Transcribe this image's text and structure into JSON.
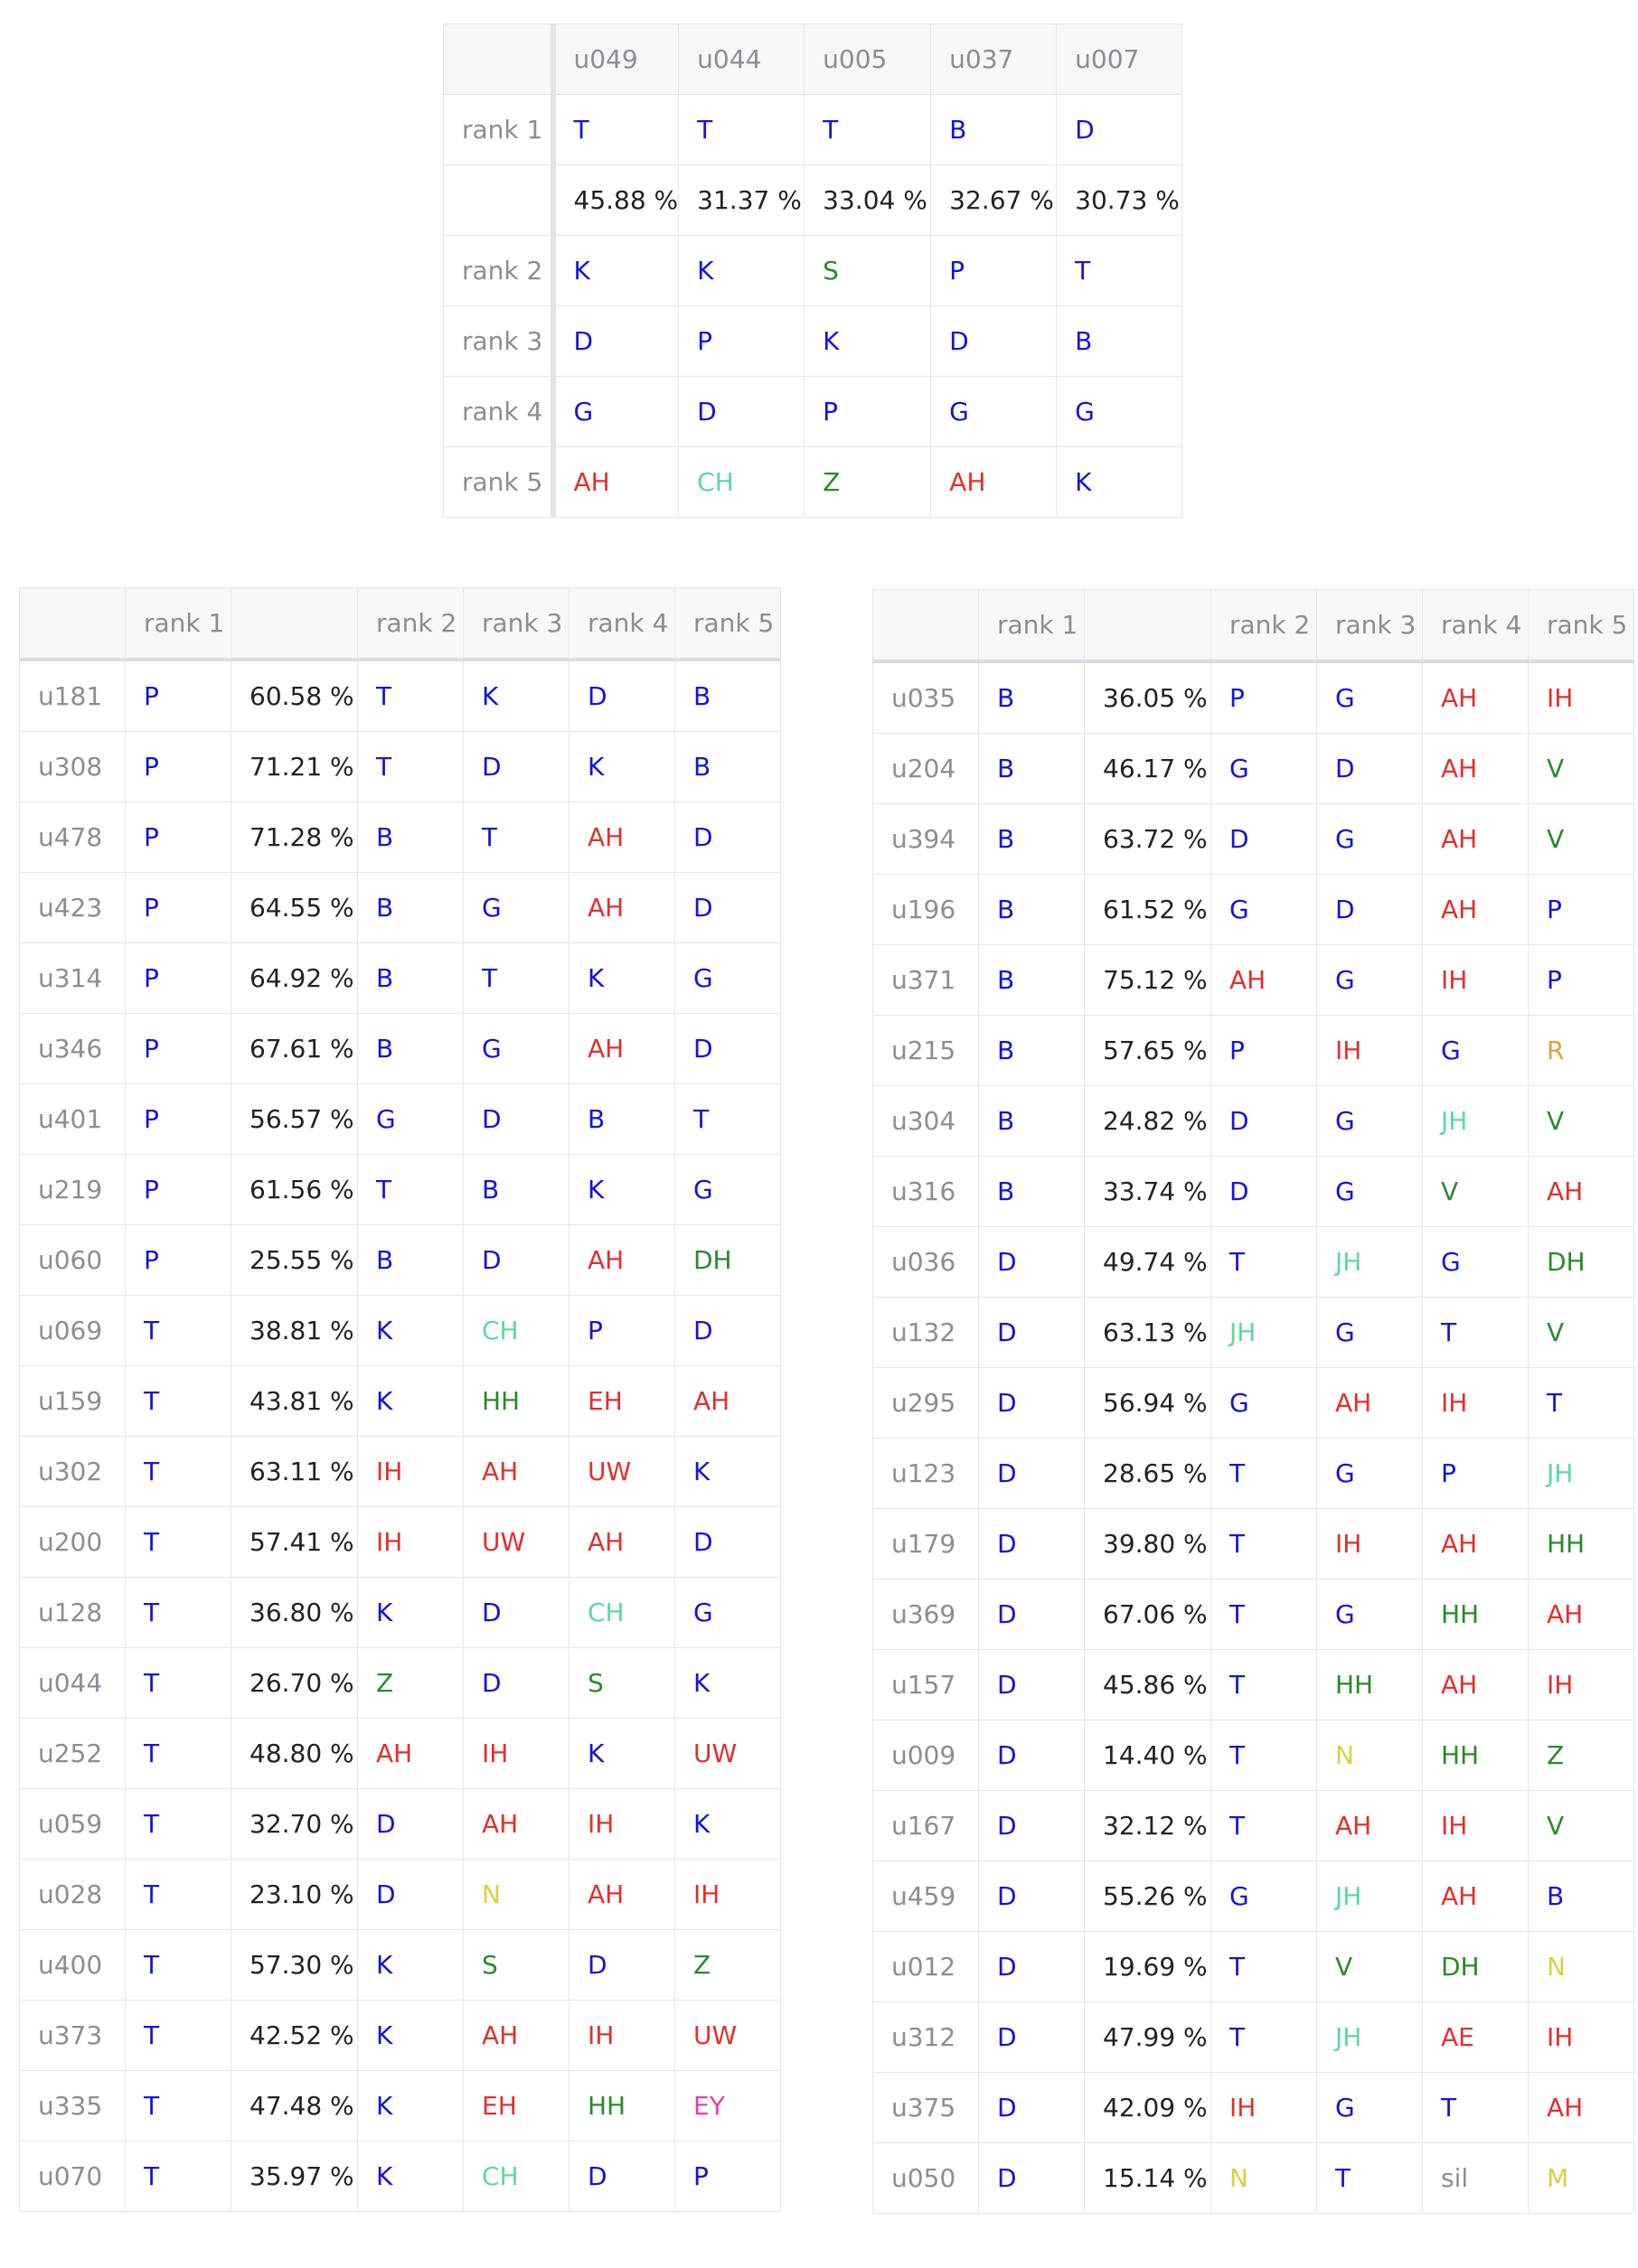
{
  "top_table": {
    "columns": [
      "u049",
      "u044",
      "u005",
      "u037",
      "u007"
    ],
    "rows": [
      {
        "label": "rank 1",
        "type": "phone",
        "values": [
          "T",
          "T",
          "T",
          "B",
          "D"
        ]
      },
      {
        "label": "",
        "type": "pct",
        "values": [
          "45.88 %",
          "31.37 %",
          "33.04 %",
          "32.67 %",
          "30.73 %"
        ]
      },
      {
        "label": "rank 2",
        "type": "phone",
        "values": [
          "K",
          "K",
          "S",
          "P",
          "T"
        ]
      },
      {
        "label": "rank 3",
        "type": "phone",
        "values": [
          "D",
          "P",
          "K",
          "D",
          "B"
        ]
      },
      {
        "label": "rank 4",
        "type": "phone",
        "values": [
          "G",
          "D",
          "P",
          "G",
          "G"
        ]
      },
      {
        "label": "rank 5",
        "type": "phone",
        "values": [
          "AH",
          "CH",
          "Z",
          "AH",
          "K"
        ]
      }
    ]
  },
  "left_table": {
    "headers": [
      "",
      "rank 1",
      "",
      "rank 2",
      "rank 3",
      "rank 4",
      "rank 5"
    ],
    "rows": [
      [
        "u181",
        "P",
        "60.58 %",
        "T",
        "K",
        "D",
        "B"
      ],
      [
        "u308",
        "P",
        "71.21 %",
        "T",
        "D",
        "K",
        "B"
      ],
      [
        "u478",
        "P",
        "71.28 %",
        "B",
        "T",
        "AH",
        "D"
      ],
      [
        "u423",
        "P",
        "64.55 %",
        "B",
        "G",
        "AH",
        "D"
      ],
      [
        "u314",
        "P",
        "64.92 %",
        "B",
        "T",
        "K",
        "G"
      ],
      [
        "u346",
        "P",
        "67.61 %",
        "B",
        "G",
        "AH",
        "D"
      ],
      [
        "u401",
        "P",
        "56.57 %",
        "G",
        "D",
        "B",
        "T"
      ],
      [
        "u219",
        "P",
        "61.56 %",
        "T",
        "B",
        "K",
        "G"
      ],
      [
        "u060",
        "P",
        "25.55 %",
        "B",
        "D",
        "AH",
        "DH"
      ],
      [
        "u069",
        "T",
        "38.81 %",
        "K",
        "CH",
        "P",
        "D"
      ],
      [
        "u159",
        "T",
        "43.81 %",
        "K",
        "HH",
        "EH",
        "AH"
      ],
      [
        "u302",
        "T",
        "63.11 %",
        "IH",
        "AH",
        "UW",
        "K"
      ],
      [
        "u200",
        "T",
        "57.41 %",
        "IH",
        "UW",
        "AH",
        "D"
      ],
      [
        "u128",
        "T",
        "36.80 %",
        "K",
        "D",
        "CH",
        "G"
      ],
      [
        "u044",
        "T",
        "26.70 %",
        "Z",
        "D",
        "S",
        "K"
      ],
      [
        "u252",
        "T",
        "48.80 %",
        "AH",
        "IH",
        "K",
        "UW"
      ],
      [
        "u059",
        "T",
        "32.70 %",
        "D",
        "AH",
        "IH",
        "K"
      ],
      [
        "u028",
        "T",
        "23.10 %",
        "D",
        "N",
        "AH",
        "IH"
      ],
      [
        "u400",
        "T",
        "57.30 %",
        "K",
        "S",
        "D",
        "Z"
      ],
      [
        "u373",
        "T",
        "42.52 %",
        "K",
        "AH",
        "IH",
        "UW"
      ],
      [
        "u335",
        "T",
        "47.48 %",
        "K",
        "EH",
        "HH",
        "EY"
      ],
      [
        "u070",
        "T",
        "35.97 %",
        "K",
        "CH",
        "D",
        "P"
      ]
    ]
  },
  "right_table": {
    "headers": [
      "",
      "rank 1",
      "",
      "rank 2",
      "rank 3",
      "rank 4",
      "rank 5"
    ],
    "rows": [
      [
        "u035",
        "B",
        "36.05 %",
        "P",
        "G",
        "AH",
        "IH"
      ],
      [
        "u204",
        "B",
        "46.17 %",
        "G",
        "D",
        "AH",
        "V"
      ],
      [
        "u394",
        "B",
        "63.72 %",
        "D",
        "G",
        "AH",
        "V"
      ],
      [
        "u196",
        "B",
        "61.52 %",
        "G",
        "D",
        "AH",
        "P"
      ],
      [
        "u371",
        "B",
        "75.12 %",
        "AH",
        "G",
        "IH",
        "P"
      ],
      [
        "u215",
        "B",
        "57.65 %",
        "P",
        "IH",
        "G",
        "R"
      ],
      [
        "u304",
        "B",
        "24.82 %",
        "D",
        "G",
        "JH",
        "V"
      ],
      [
        "u316",
        "B",
        "33.74 %",
        "D",
        "G",
        "V",
        "AH"
      ],
      [
        "u036",
        "D",
        "49.74 %",
        "T",
        "JH",
        "G",
        "DH"
      ],
      [
        "u132",
        "D",
        "63.13 %",
        "JH",
        "G",
        "T",
        "V"
      ],
      [
        "u295",
        "D",
        "56.94 %",
        "G",
        "AH",
        "IH",
        "T"
      ],
      [
        "u123",
        "D",
        "28.65 %",
        "T",
        "G",
        "P",
        "JH"
      ],
      [
        "u179",
        "D",
        "39.80 %",
        "T",
        "IH",
        "AH",
        "HH"
      ],
      [
        "u369",
        "D",
        "67.06 %",
        "T",
        "G",
        "HH",
        "AH"
      ],
      [
        "u157",
        "D",
        "45.86 %",
        "T",
        "HH",
        "AH",
        "IH"
      ],
      [
        "u009",
        "D",
        "14.40 %",
        "T",
        "N",
        "HH",
        "Z"
      ],
      [
        "u167",
        "D",
        "32.12 %",
        "T",
        "AH",
        "IH",
        "V"
      ],
      [
        "u459",
        "D",
        "55.26 %",
        "G",
        "JH",
        "AH",
        "B"
      ],
      [
        "u012",
        "D",
        "19.69 %",
        "T",
        "V",
        "DH",
        "N"
      ],
      [
        "u312",
        "D",
        "47.99 %",
        "T",
        "JH",
        "AE",
        "IH"
      ],
      [
        "u375",
        "D",
        "42.09 %",
        "IH",
        "G",
        "T",
        "AH"
      ],
      [
        "u050",
        "D",
        "15.14 %",
        "N",
        "T",
        "sil",
        "M"
      ]
    ]
  }
}
